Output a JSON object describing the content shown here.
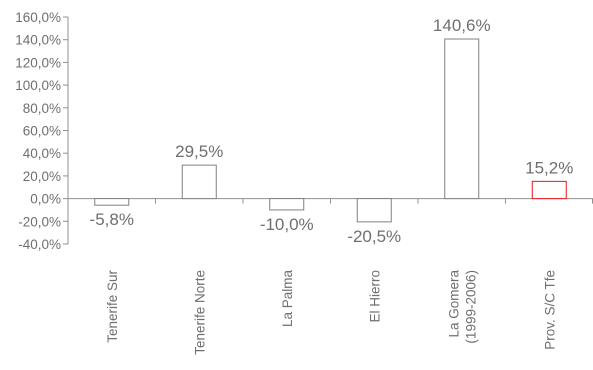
{
  "chart_data": {
    "type": "bar",
    "title": "",
    "xlabel": "",
    "ylabel": "",
    "categories": [
      [
        "Tenerife Sur"
      ],
      [
        "Tenerife Norte"
      ],
      [
        "La Palma"
      ],
      [
        "El Hierro"
      ],
      [
        "La Gomera",
        "(1999-2006)"
      ],
      [
        "Prov. S/C Tfe"
      ]
    ],
    "values": [
      -5.8,
      29.5,
      -10.0,
      -20.5,
      140.6,
      15.2
    ],
    "value_labels": [
      "-5,8%",
      "29,5%",
      "-10,0%",
      "-20,5%",
      "140,6%",
      "15,2%"
    ],
    "highlight_index": 5,
    "ylim": [
      -40,
      160
    ],
    "yticks": [
      -40,
      -20,
      0,
      20,
      40,
      60,
      80,
      100,
      120,
      140,
      160
    ],
    "ytick_labels": [
      "-40,0%",
      "-20,0%",
      "0,0%",
      "20,0%",
      "40,0%",
      "60,0%",
      "80,0%",
      "100,0%",
      "120,0%",
      "140,0%",
      "160,0%"
    ],
    "grid": false,
    "legend": "none",
    "colors": {
      "bar_stroke": "#808080",
      "bar_fill": "#ffffff",
      "axis": "#909090",
      "text": "#6f6f6f",
      "highlight": "#e3161c"
    }
  }
}
